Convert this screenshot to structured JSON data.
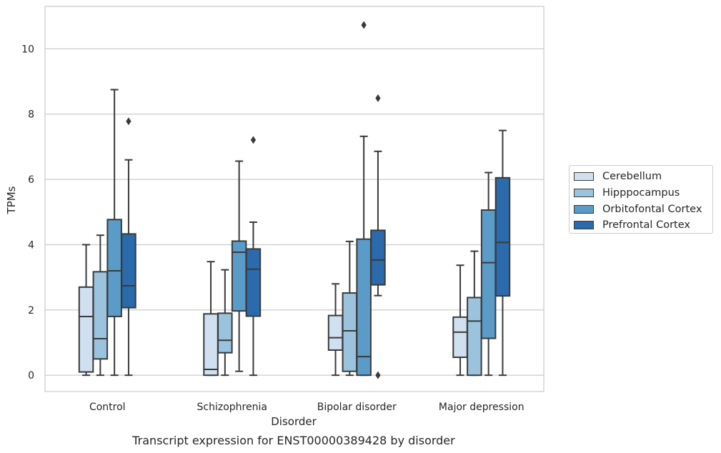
{
  "chart_data": {
    "type": "box",
    "title": "",
    "caption": "Transcript expression for ENST00000389428 by disorder",
    "xlabel": "Disorder",
    "ylabel": "TPMs",
    "ylim": [
      -0.5,
      11.3
    ],
    "yticks": [
      0,
      2,
      4,
      6,
      8,
      10
    ],
    "grid": "horizontal",
    "legend_position": "right",
    "categories": [
      "Control",
      "Schizophrenia",
      "Bipolar disorder",
      "Major depression"
    ],
    "series": [
      {
        "name": "Cerebellum",
        "color": "#d0e0f0",
        "boxes": [
          {
            "whislo": 0.0,
            "q1": 0.1,
            "med": 1.8,
            "q3": 2.7,
            "whishi": 4.0,
            "fliers": []
          },
          {
            "whislo": 0.0,
            "q1": 0.0,
            "med": 0.18,
            "q3": 1.88,
            "whishi": 3.48,
            "fliers": []
          },
          {
            "whislo": 0.0,
            "q1": 0.77,
            "med": 1.15,
            "q3": 1.83,
            "whishi": 2.8,
            "fliers": []
          },
          {
            "whislo": 0.0,
            "q1": 0.55,
            "med": 1.32,
            "q3": 1.78,
            "whishi": 3.37,
            "fliers": []
          }
        ]
      },
      {
        "name": "Hipppocampus",
        "color": "#9cc3dd",
        "boxes": [
          {
            "whislo": 0.0,
            "q1": 0.5,
            "med": 1.12,
            "q3": 3.17,
            "whishi": 4.29,
            "fliers": []
          },
          {
            "whislo": 0.0,
            "q1": 0.69,
            "med": 1.07,
            "q3": 1.9,
            "whishi": 3.23,
            "fliers": []
          },
          {
            "whislo": 0.0,
            "q1": 0.12,
            "med": 1.36,
            "q3": 2.52,
            "whishi": 4.1,
            "fliers": []
          },
          {
            "whislo": 0.0,
            "q1": 0.0,
            "med": 1.66,
            "q3": 2.38,
            "whishi": 3.8,
            "fliers": []
          }
        ]
      },
      {
        "name": "Orbitofontal Cortex",
        "color": "#5b9bc8",
        "boxes": [
          {
            "whislo": 0.0,
            "q1": 1.8,
            "med": 3.2,
            "q3": 4.77,
            "whishi": 8.75,
            "fliers": []
          },
          {
            "whislo": 0.12,
            "q1": 1.97,
            "med": 3.77,
            "q3": 4.11,
            "whishi": 6.56,
            "fliers": []
          },
          {
            "whislo": 0.0,
            "q1": 0.0,
            "med": 0.57,
            "q3": 4.17,
            "whishi": 7.32,
            "fliers": [
              10.73
            ]
          },
          {
            "whislo": 0.0,
            "q1": 1.13,
            "med": 3.45,
            "q3": 5.06,
            "whishi": 6.21,
            "fliers": []
          }
        ]
      },
      {
        "name": "Prefrontal Cortex",
        "color": "#2b6aab",
        "boxes": [
          {
            "whislo": 0.0,
            "q1": 2.07,
            "med": 2.74,
            "q3": 4.33,
            "whishi": 6.6,
            "fliers": [
              7.78
            ]
          },
          {
            "whislo": 0.0,
            "q1": 1.81,
            "med": 3.25,
            "q3": 3.87,
            "whishi": 4.69,
            "fliers": [
              7.21
            ]
          },
          {
            "whislo": 2.44,
            "q1": 2.77,
            "med": 3.53,
            "q3": 4.44,
            "whishi": 6.86,
            "fliers": [
              8.49,
              0.0
            ]
          },
          {
            "whislo": 0.0,
            "q1": 2.43,
            "med": 4.07,
            "q3": 6.05,
            "whishi": 7.5,
            "fliers": []
          }
        ]
      }
    ]
  }
}
